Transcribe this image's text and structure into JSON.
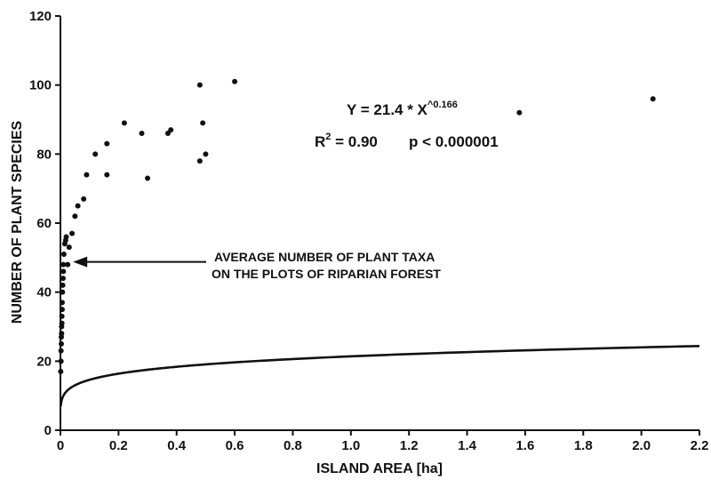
{
  "chart_data": {
    "type": "scatter",
    "xlabel": "ISLAND AREA [ha]",
    "ylabel": "NUMBER OF PLANT SPECIES",
    "xlim": [
      0,
      2.2
    ],
    "ylim": [
      0,
      120
    ],
    "x_ticks": [
      0,
      0.2,
      0.4,
      0.6,
      0.8,
      1.0,
      1.2,
      1.4,
      1.6,
      1.8,
      2.0,
      2.2
    ],
    "x_tick_labels": [
      "0",
      "0.2",
      "0.4",
      "0.6",
      "0.8",
      "1.0",
      "1.2",
      "1.4",
      "1.6",
      "1.8",
      "2.0",
      "2.2"
    ],
    "y_ticks": [
      0,
      20,
      40,
      60,
      80,
      100,
      120
    ],
    "y_tick_labels": [
      "0",
      "20",
      "40",
      "60",
      "80",
      "100",
      "120"
    ],
    "grid": false,
    "series": [
      {
        "x": [
          0.001,
          0.002,
          0.002,
          0.003,
          0.003,
          0.004,
          0.004,
          0.005,
          0.005,
          0.006,
          0.006,
          0.007,
          0.008,
          0.009,
          0.01,
          0.01,
          0.012,
          0.015,
          0.018,
          0.02,
          0.025,
          0.03,
          0.04,
          0.05,
          0.06,
          0.08,
          0.09,
          0.12,
          0.16,
          0.16,
          0.22,
          0.28,
          0.3,
          0.37,
          0.38,
          0.48,
          0.48,
          0.49,
          0.5,
          0.6,
          1.58,
          2.04
        ],
        "y": [
          17,
          20,
          23,
          25,
          27,
          28,
          30,
          31,
          33,
          35,
          37,
          40,
          42,
          44,
          46,
          48,
          51,
          54,
          55,
          56,
          48,
          53,
          57,
          62,
          65,
          67,
          74,
          80,
          74,
          83,
          89,
          86,
          73,
          86,
          87,
          100,
          78,
          89,
          80,
          101,
          92,
          96
        ]
      }
    ],
    "fit": {
      "a": 21.4,
      "b": 0.166,
      "equation_prefix": "Y = 21.4 * X",
      "equation_exponent": "^0.166",
      "r2_prefix": "R",
      "r2_exponent": "2",
      "r2_value": " = 0.90",
      "p_value": "p < 0.000001"
    },
    "annotation": {
      "line1": "AVERAGE NUMBER OF PLANT TAXA",
      "line2": "ON THE PLOTS OF RIPARIAN FOREST",
      "target_x": 0.025,
      "target_y": 48
    }
  }
}
